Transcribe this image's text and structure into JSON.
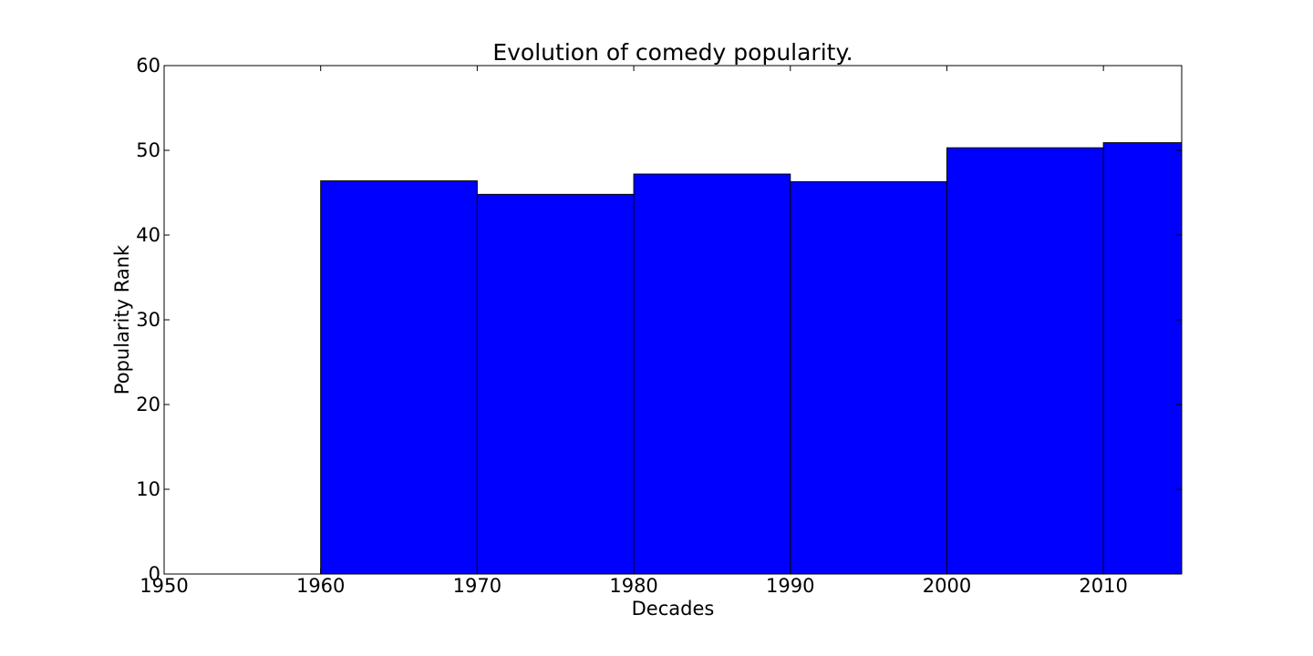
{
  "chart_data": {
    "type": "bar",
    "title": "Evolution of comedy popularity.",
    "xlabel": "Decades",
    "ylabel": "Popularity Rank",
    "xlim": [
      1950,
      2015
    ],
    "ylim": [
      0,
      60
    ],
    "x_ticks": [
      "1950",
      "1960",
      "1970",
      "1980",
      "1990",
      "2000",
      "2010"
    ],
    "y_ticks": [
      "0",
      "10",
      "20",
      "30",
      "40",
      "50",
      "60"
    ],
    "bars": [
      {
        "start": 1960,
        "end": 1970,
        "value": 46.4
      },
      {
        "start": 1970,
        "end": 1980,
        "value": 44.8
      },
      {
        "start": 1980,
        "end": 1990,
        "value": 47.2
      },
      {
        "start": 1990,
        "end": 2000,
        "value": 46.3
      },
      {
        "start": 2000,
        "end": 2010,
        "value": 50.3
      },
      {
        "start": 2010,
        "end": 2020,
        "value": 50.9
      }
    ],
    "grid": false,
    "bar_color": "#0000ff",
    "edge_color": "#000000"
  }
}
